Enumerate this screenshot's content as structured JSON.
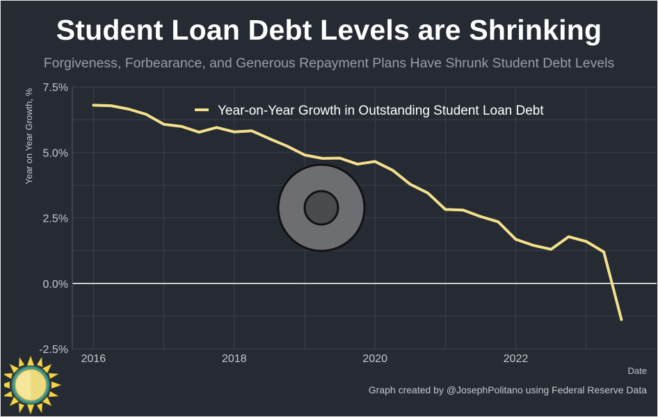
{
  "header": {
    "title": "Student Loan Debt Levels are Shrinking",
    "subtitle": "Forgiveness, Forbearance, and Generous Repayment Plans Have Shrunk Student Debt Levels"
  },
  "footer": {
    "credit": "Graph created by @JosephPolitano using Federal Reserve Data"
  },
  "colors": {
    "background": "#252a33",
    "line": "#f3e08c",
    "grid": "#3d424c",
    "zero_line": "#ffffff",
    "text": "#c7c9cf"
  },
  "chart_data": {
    "type": "line",
    "title": "Student Loan Debt Levels are Shrinking",
    "subtitle": "Forgiveness, Forbearance, and Generous Repayment Plans Have Shrunk Student Debt Levels",
    "xlabel": "Date",
    "ylabel": "Year on Year Growth, %",
    "xlim": [
      2015.7,
      2024.0
    ],
    "ylim": [
      -2.5,
      7.5
    ],
    "x_ticks": [
      2016,
      2018,
      2020,
      2022
    ],
    "x_tick_labels": [
      "2016",
      "2018",
      "2020",
      "2022"
    ],
    "y_ticks": [
      -2.5,
      0.0,
      2.5,
      5.0,
      7.5
    ],
    "y_tick_labels": [
      "-2.5%",
      "0.0%",
      "2.5%",
      "5.0%",
      "7.5%"
    ],
    "grid": true,
    "legend_position": "top",
    "series": [
      {
        "name": "Year-on-Year Growth in Outstanding Student Loan Debt",
        "x": [
          2016.0,
          2016.25,
          2016.5,
          2016.75,
          2017.0,
          2017.25,
          2017.5,
          2017.75,
          2018.0,
          2018.25,
          2018.5,
          2018.75,
          2019.0,
          2019.25,
          2019.5,
          2019.75,
          2020.0,
          2020.25,
          2020.5,
          2020.75,
          2021.0,
          2021.25,
          2021.5,
          2021.75,
          2022.0,
          2022.25,
          2022.5,
          2022.75,
          2023.0,
          2023.25,
          2023.5
        ],
        "values": [
          6.8,
          6.78,
          6.65,
          6.45,
          6.07,
          5.99,
          5.77,
          5.95,
          5.78,
          5.82,
          5.52,
          5.24,
          4.9,
          4.77,
          4.78,
          4.55,
          4.65,
          4.32,
          3.78,
          3.45,
          2.82,
          2.8,
          2.55,
          2.35,
          1.68,
          1.45,
          1.3,
          1.78,
          1.6,
          1.2,
          -1.38
        ]
      }
    ]
  }
}
